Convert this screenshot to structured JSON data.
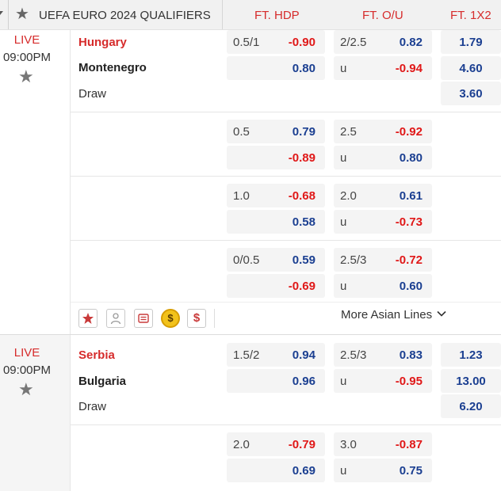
{
  "header": {
    "league": "UEFA EURO 2024 QUALIFIERS",
    "col_hdp": "FT. HDP",
    "col_ou": "FT. O/U",
    "col_1x2": "FT. 1X2"
  },
  "colors": {
    "accent_red": "#d62b2b",
    "odds_blue": "#1b3f91",
    "odds_red": "#e01818"
  },
  "matches": [
    {
      "status": "LIVE",
      "time": "09:00PM",
      "home": "Hungary",
      "away": "Montenegro",
      "draw_label": "Draw",
      "lines": [
        {
          "hdp": "0.5/1",
          "hdp_home": "-0.90",
          "hdp_away": "0.80",
          "ou": "2/2.5",
          "over": "0.82",
          "under_label": "u",
          "under": "-0.94"
        },
        {
          "hdp": "0.5",
          "hdp_home": "0.79",
          "hdp_away": "-0.89",
          "ou": "2.5",
          "over": "-0.92",
          "under_label": "u",
          "under": "0.80"
        },
        {
          "hdp": "1.0",
          "hdp_home": "-0.68",
          "hdp_away": "0.58",
          "ou": "2.0",
          "over": "0.61",
          "under_label": "u",
          "under": "-0.73"
        },
        {
          "hdp": "0/0.5",
          "hdp_home": "0.59",
          "hdp_away": "-0.69",
          "ou": "2.5/3",
          "over": "-0.72",
          "under_label": "u",
          "under": "0.60"
        }
      ],
      "x2": {
        "home": "1.79",
        "away": "4.60",
        "draw": "3.60"
      },
      "more_label": "More Asian Lines"
    },
    {
      "status": "LIVE",
      "time": "09:00PM",
      "home": "Serbia",
      "away": "Bulgaria",
      "draw_label": "Draw",
      "lines": [
        {
          "hdp": "1.5/2",
          "hdp_home": "0.94",
          "hdp_away": "0.96",
          "ou": "2.5/3",
          "over": "0.83",
          "under_label": "u",
          "under": "-0.95"
        },
        {
          "hdp": "2.0",
          "hdp_home": "-0.79",
          "hdp_away": "0.69",
          "ou": "3.0",
          "over": "-0.87",
          "under_label": "u",
          "under": "0.75"
        }
      ],
      "x2": {
        "home": "1.23",
        "away": "13.00",
        "draw": "6.20"
      }
    }
  ],
  "toolbar_icons": [
    "star-icon",
    "person-icon",
    "ticket-icon",
    "coin-icon",
    "dollar-icon"
  ],
  "toolbar_dollar": "$",
  "toolbar_coin": "$"
}
